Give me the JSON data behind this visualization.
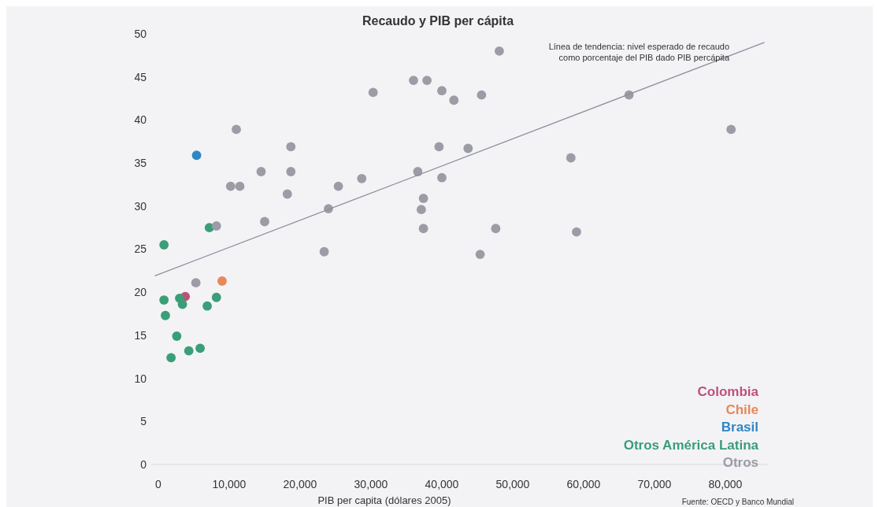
{
  "chart_data": {
    "type": "scatter",
    "title": "Recaudo y PIB per cápita",
    "xlabel": "PIB per capita (dólares 2005)",
    "annotations": [
      "Línea de tendencia: nivel esperado de recaudo\ncomo porcentaje del PIB dado PIB percápita",
      "Fuente: OECD y Banco Mundial"
    ],
    "xlim": [
      -1000,
      86000
    ],
    "xticks": [
      {
        "value": 0,
        "label": "0"
      },
      {
        "value": 10000,
        "label": "10,000"
      },
      {
        "value": 20000,
        "label": "20,000"
      },
      {
        "value": 30000,
        "label": "30,000"
      },
      {
        "value": 40000,
        "label": "40,000"
      },
      {
        "value": 50000,
        "label": "50,000"
      },
      {
        "value": 60000,
        "label": "60,000"
      },
      {
        "value": 70000,
        "label": "70,000"
      },
      {
        "value": 80000,
        "label": "80,000"
      }
    ],
    "ylim": [
      0,
      50
    ],
    "yticks": [
      0,
      5,
      10,
      15,
      20,
      25,
      30,
      35,
      40,
      45,
      50
    ],
    "grid": false,
    "legend": "bottom right",
    "marker": "circle",
    "series": [
      {
        "name": "Colombia",
        "color": "#c0507a",
        "x": [
          3800
        ],
        "values": [
          19.5
        ]
      },
      {
        "name": "Chile",
        "color": "#e8875a",
        "x": [
          9000
        ],
        "values": [
          21.3
        ]
      },
      {
        "name": "Brasil",
        "color": "#2f86c4",
        "x": [
          5400
        ],
        "values": [
          35.9
        ]
      },
      {
        "name": "Otros América Latina",
        "color": "#3a9e78",
        "x": [
          800,
          7200,
          800,
          3000,
          3400,
          6900,
          8200,
          1000,
          2600,
          1800,
          4300,
          5900
        ],
        "values": [
          25.5,
          27.5,
          19.1,
          19.3,
          18.6,
          18.4,
          19.4,
          17.3,
          14.9,
          12.4,
          13.2,
          13.5
        ]
      },
      {
        "name": "Otros",
        "color": "#9c9ca6",
        "x": [
          48100,
          36000,
          37900,
          30300,
          40000,
          41700,
          45600,
          11000,
          18700,
          39600,
          43700,
          14500,
          18700,
          36600,
          10200,
          11500,
          18200,
          25400,
          28700,
          40000,
          37400,
          37100,
          24000,
          15000,
          37400,
          47600,
          8200,
          23400,
          45400,
          66400,
          80800,
          58200,
          59000,
          5300
        ],
        "values": [
          48.0,
          44.6,
          44.6,
          43.2,
          43.4,
          42.3,
          42.9,
          38.9,
          36.9,
          36.9,
          36.7,
          34.0,
          34.0,
          34.0,
          32.3,
          32.3,
          31.4,
          32.3,
          33.2,
          33.3,
          30.9,
          29.6,
          29.7,
          28.2,
          27.4,
          27.4,
          27.7,
          24.7,
          24.4,
          42.9,
          38.9,
          35.6,
          27.0,
          21.1
        ]
      },
      {
        "type": "line",
        "color": "#8a909c",
        "marker": "none",
        "x": [
          -500,
          85500
        ],
        "values": [
          21.9,
          49.0
        ]
      }
    ]
  }
}
